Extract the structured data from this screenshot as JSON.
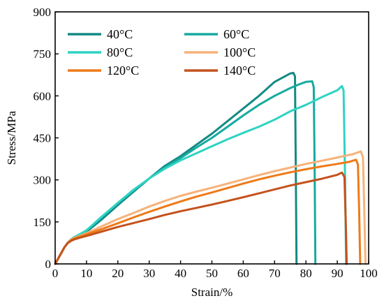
{
  "chart_data": {
    "type": "line",
    "xlabel": "Strain/%",
    "ylabel": "Stress/MPa",
    "xlim": [
      0,
      100
    ],
    "ylim": [
      0,
      900
    ],
    "xticks": [
      0,
      10,
      20,
      30,
      40,
      50,
      60,
      70,
      80,
      90,
      100
    ],
    "yticks": [
      0,
      150,
      300,
      450,
      600,
      750,
      900
    ],
    "grid": false,
    "legend_position": "top-left",
    "series": [
      {
        "name": "40°C",
        "color": "#138a84",
        "x": [
          0,
          1,
          2,
          3,
          4,
          5,
          6,
          8,
          10,
          15,
          20,
          25,
          30,
          35,
          40,
          45,
          50,
          55,
          60,
          65,
          70,
          73,
          75,
          76,
          76.5,
          76.8,
          77
        ],
        "y": [
          0,
          20,
          40,
          60,
          75,
          85,
          92,
          103,
          115,
          160,
          210,
          258,
          305,
          350,
          385,
          425,
          465,
          510,
          555,
          600,
          650,
          668,
          680,
          682,
          670,
          300,
          0
        ]
      },
      {
        "name": "60°C",
        "color": "#16aaa0",
        "x": [
          0,
          1,
          2,
          3,
          4,
          5,
          6,
          8,
          10,
          15,
          20,
          25,
          30,
          35,
          40,
          45,
          50,
          55,
          60,
          65,
          70,
          75,
          78,
          80,
          82,
          82.5,
          82.8,
          83
        ],
        "y": [
          0,
          20,
          40,
          60,
          76,
          87,
          95,
          106,
          120,
          168,
          218,
          262,
          305,
          345,
          378,
          415,
          450,
          490,
          530,
          568,
          600,
          628,
          642,
          650,
          652,
          630,
          300,
          0
        ]
      },
      {
        "name": "80°C",
        "color": "#2fd3c3",
        "x": [
          0,
          1,
          2,
          3,
          4,
          5,
          6,
          8,
          10,
          15,
          20,
          25,
          30,
          35,
          40,
          45,
          50,
          55,
          60,
          65,
          70,
          75,
          80,
          85,
          90,
          91.5,
          92,
          92.5,
          92.8
        ],
        "y": [
          0,
          20,
          40,
          60,
          75,
          86,
          95,
          107,
          120,
          170,
          218,
          265,
          305,
          340,
          370,
          395,
          420,
          445,
          468,
          490,
          515,
          545,
          568,
          595,
          620,
          635,
          620,
          300,
          0
        ]
      },
      {
        "name": "100°C",
        "color": "#f6b27a",
        "x": [
          0,
          1,
          2,
          3,
          4,
          5,
          6,
          8,
          10,
          15,
          20,
          25,
          30,
          35,
          40,
          45,
          50,
          55,
          60,
          65,
          70,
          75,
          80,
          85,
          90,
          95,
          97.5,
          98.2,
          98.6,
          99
        ],
        "y": [
          0,
          20,
          40,
          60,
          76,
          86,
          92,
          101,
          110,
          135,
          160,
          182,
          205,
          225,
          243,
          258,
          272,
          287,
          302,
          317,
          331,
          344,
          357,
          368,
          380,
          392,
          402,
          380,
          200,
          0
        ]
      },
      {
        "name": "120°C",
        "color": "#ee7a18",
        "x": [
          0,
          1,
          2,
          3,
          4,
          5,
          6,
          8,
          10,
          15,
          20,
          25,
          30,
          35,
          40,
          45,
          50,
          55,
          60,
          65,
          70,
          75,
          80,
          85,
          90,
          94,
          96,
          96.6,
          97,
          97.3
        ],
        "y": [
          0,
          20,
          40,
          60,
          75,
          84,
          90,
          98,
          106,
          125,
          145,
          166,
          186,
          205,
          223,
          240,
          255,
          271,
          287,
          302,
          315,
          327,
          338,
          348,
          357,
          365,
          372,
          355,
          180,
          0
        ]
      },
      {
        "name": "140°C",
        "color": "#c4521c",
        "x": [
          0,
          1,
          2,
          3,
          4,
          5,
          6,
          8,
          10,
          15,
          20,
          25,
          30,
          35,
          40,
          45,
          50,
          55,
          60,
          65,
          70,
          75,
          80,
          85,
          90,
          91.5,
          92.3,
          92.7,
          93
        ],
        "y": [
          0,
          20,
          40,
          60,
          74,
          82,
          87,
          94,
          100,
          116,
          132,
          146,
          160,
          175,
          188,
          200,
          212,
          225,
          238,
          252,
          266,
          280,
          292,
          304,
          318,
          326,
          310,
          150,
          0
        ]
      }
    ]
  }
}
